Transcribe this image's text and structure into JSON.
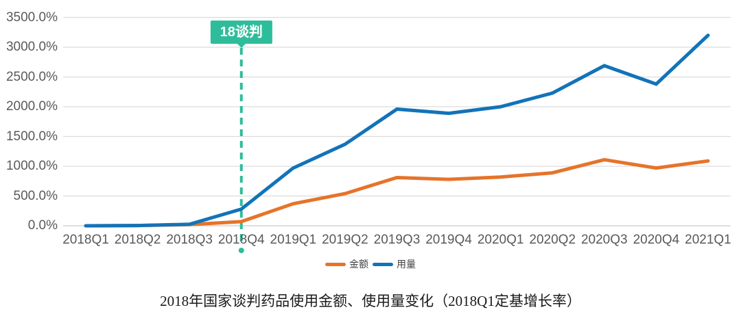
{
  "colors": {
    "background": "#ffffff",
    "gridline": "#dcdcdc",
    "axis_line": "#c9c9c9",
    "axis_text": "#595959",
    "legend_text": "#404040",
    "title_text": "#1a1a1a",
    "annotation_fill": "#2ebd9b",
    "annotation_text": "#ffffff"
  },
  "annotation": {
    "label": "18谈判",
    "category": "2018Q4"
  },
  "chart_data": {
    "type": "line",
    "title": "2018年国家谈判药品使用金额、使用量变化（2018Q1定基增长率）",
    "xlabel": "",
    "ylabel": "",
    "ylim": [
      0,
      3500
    ],
    "y_tick_step": 500,
    "y_ticks": [
      "0.0%",
      "500.0%",
      "1000.0%",
      "1500.0%",
      "2000.0%",
      "2500.0%",
      "3000.0%",
      "3500.0%"
    ],
    "grid": true,
    "legend_position": "bottom",
    "categories": [
      "2018Q1",
      "2018Q2",
      "2018Q3",
      "2018Q4",
      "2019Q1",
      "2019Q2",
      "2019Q3",
      "2019Q4",
      "2020Q1",
      "2020Q2",
      "2020Q3",
      "2020Q4",
      "2021Q1"
    ],
    "series": [
      {
        "name": "金额",
        "color": "#e5742a",
        "values": [
          0,
          5,
          20,
          70,
          370,
          540,
          810,
          780,
          820,
          890,
          1110,
          970,
          1090
        ]
      },
      {
        "name": "用量",
        "color": "#1273b9",
        "values": [
          0,
          5,
          25,
          280,
          970,
          1370,
          1960,
          1890,
          2000,
          2230,
          2690,
          2380,
          3200
        ]
      }
    ]
  }
}
